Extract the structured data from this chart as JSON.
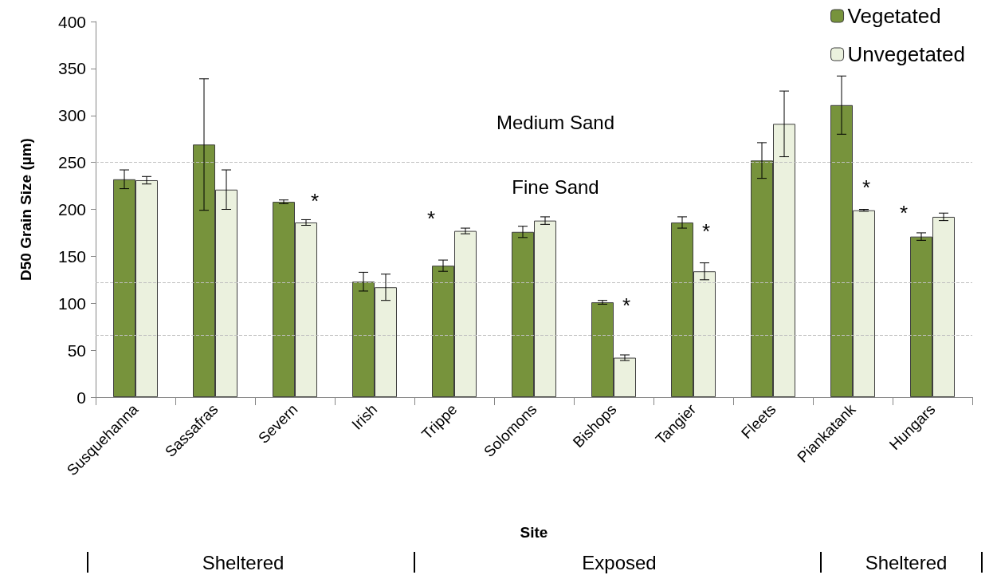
{
  "chart_data": {
    "type": "bar",
    "xlabel": "Site",
    "ylabel": "D50 Grain Size (µm)",
    "categories": [
      "Susquehanna",
      "Sassafras",
      "Severn",
      "Irish",
      "Trippe",
      "Solomons",
      "Bishops",
      "Tangier",
      "Fleets",
      "Piankatank",
      "Hungars"
    ],
    "series": [
      {
        "name": "Vegetated",
        "color": "#77933c",
        "values": [
          232,
          269,
          208,
          123,
          140,
          176,
          101,
          186,
          252,
          311,
          171
        ],
        "errors": [
          10,
          70,
          2,
          10,
          6,
          6,
          2,
          6,
          19,
          31,
          4
        ]
      },
      {
        "name": "Unvegetated",
        "color": "#ebf1de",
        "values": [
          231,
          221,
          186,
          117,
          177,
          188,
          42,
          134,
          291,
          199,
          192
        ],
        "errors": [
          4,
          21,
          3,
          14,
          3,
          4,
          3,
          9,
          35,
          1,
          4
        ]
      }
    ],
    "ylim": [
      0,
      400
    ],
    "yticks": [
      0,
      50,
      100,
      150,
      200,
      250,
      300,
      350,
      400
    ],
    "grid": false,
    "legend": "top right",
    "ref_lines": [
      {
        "axis": "y",
        "value": 250,
        "color": "#bfbfbf",
        "line_style": "dashed"
      },
      {
        "axis": "y",
        "value": 122,
        "color": "#bfbfbf",
        "line_style": "dashed"
      },
      {
        "axis": "y",
        "value": 66,
        "color": "#bfbfbf",
        "line_style": "dashed"
      }
    ],
    "annotations": [
      "Medium Sand",
      "Fine Sand",
      "*",
      "*",
      "*",
      "*",
      "*",
      "*",
      "Sheltered",
      "Exposed",
      "Sheltered"
    ]
  }
}
